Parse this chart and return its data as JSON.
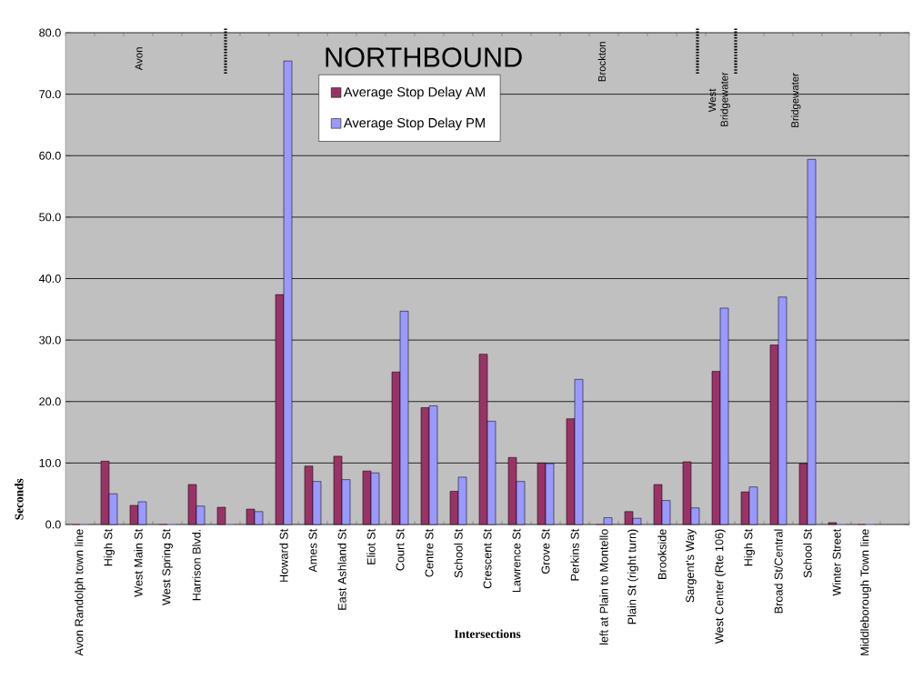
{
  "chart_data": {
    "type": "bar",
    "xlabel": "Intersections",
    "ylabel": "Seconds",
    "categories": [
      "Avon Randolph town line",
      "High St",
      "West Main St",
      "West Spring St",
      "Harrison Blvd.",
      null,
      null,
      "Howard St",
      "Ames St",
      "East Ashland St",
      "Eliot St",
      "Court St",
      "Centre St",
      "School St",
      "Crescent St",
      "Lawrence St",
      "Grove St",
      "Perkins St",
      "left at Plain to Montello",
      "Plain St (right turn)",
      "Brookside",
      "Sargent's Way",
      "West Center (Rte 106)",
      "High St",
      "Broad St/Central",
      "School St",
      "Winter Street",
      "Middleborough Town line",
      null
    ],
    "series": [
      {
        "name": "Average Stop Delay AM",
        "color": "#993366",
        "values": [
          0,
          10.3,
          3.1,
          0,
          6.5,
          2.8,
          2.5,
          37.4,
          9.5,
          11.1,
          8.7,
          24.8,
          19.0,
          5.4,
          27.7,
          10.9,
          10.0,
          17.2,
          0,
          2.1,
          6.5,
          10.2,
          24.9,
          5.3,
          29.2,
          9.9,
          0.3,
          0,
          null
        ]
      },
      {
        "name": "Average Stop Delay PM",
        "color": "#9999ff",
        "values": [
          0,
          5.0,
          3.7,
          0,
          3.0,
          0,
          2.1,
          75.4,
          7.0,
          7.3,
          8.4,
          34.7,
          19.3,
          7.7,
          16.8,
          7.0,
          9.9,
          23.6,
          1.1,
          1.0,
          3.9,
          2.7,
          35.2,
          6.1,
          37.0,
          59.4,
          0,
          0,
          null
        ]
      }
    ],
    "ylim": [
      0,
      80
    ],
    "yticks": [
      {
        "value": 0,
        "label": "0.0"
      },
      {
        "value": 10,
        "label": "10.0"
      },
      {
        "value": 20,
        "label": "20.0"
      },
      {
        "value": 30,
        "label": "30.0"
      },
      {
        "value": 40,
        "label": "40.0"
      },
      {
        "value": 50,
        "label": "50.0"
      },
      {
        "value": 60,
        "label": "60.0"
      },
      {
        "value": 70,
        "label": "70.0"
      },
      {
        "value": 80,
        "label": "80.0"
      }
    ],
    "grid": "y",
    "legend": "top",
    "annotations": [
      "NORTHBOUND",
      "Avon",
      "Brockton",
      "West Bridgewater",
      "Bridgewater"
    ]
  }
}
